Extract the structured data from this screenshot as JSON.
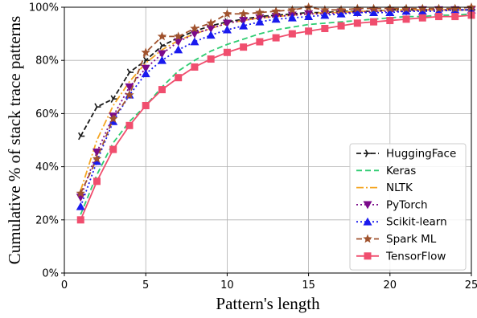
{
  "chart_data": {
    "type": "line",
    "title": "",
    "xlabel": "Pattern's length",
    "ylabel": "Cumulative % of stack trace patterns",
    "xlim": [
      0,
      25
    ],
    "ylim": [
      0,
      100
    ],
    "xticks": [
      0,
      5,
      10,
      15,
      20,
      25
    ],
    "yticks": [
      0,
      20,
      40,
      60,
      80,
      100
    ],
    "ytick_labels": [
      "0%",
      "20%",
      "40%",
      "60%",
      "80%",
      "100%"
    ],
    "grid": true,
    "legend": "lower-right",
    "series": [
      {
        "name": "HuggingFace",
        "color": "#1a1a1a",
        "dash": "6,3",
        "marker": "tri-right",
        "show_markers": true,
        "x": [
          1,
          2,
          3,
          4,
          5,
          6,
          7,
          8,
          9,
          10,
          11,
          12,
          13,
          14,
          15,
          16,
          17,
          18,
          19,
          20,
          21,
          22,
          23,
          24,
          25
        ],
        "y": [
          51.5,
          62.5,
          65.5,
          75.5,
          80,
          85.5,
          88.5,
          91,
          93,
          94.5,
          95.5,
          96.5,
          97,
          97.5,
          98,
          98,
          98.5,
          98.5,
          98.5,
          99,
          99,
          99,
          99,
          99,
          99
        ]
      },
      {
        "name": "Keras",
        "color": "#2ecc71",
        "dash": "7,4",
        "marker": "none",
        "show_markers": false,
        "x": [
          1,
          2,
          3,
          4,
          5,
          6,
          7,
          8,
          9,
          10,
          11,
          12,
          13,
          14,
          15,
          16,
          17,
          18,
          19,
          20,
          21,
          22,
          23,
          24,
          25
        ],
        "y": [
          22,
          37,
          49,
          57,
          63,
          70,
          76,
          80,
          83.5,
          86,
          88,
          90,
          91.5,
          92.5,
          93.5,
          94,
          94.5,
          95,
          95.5,
          96,
          96.5,
          96.5,
          97,
          97,
          97.5
        ]
      },
      {
        "name": "NLTK",
        "color": "#f5a623",
        "dash": "9,3,2,3",
        "marker": "none",
        "show_markers": false,
        "x": [
          1,
          2,
          3,
          4,
          5,
          6,
          7,
          8,
          9,
          10,
          11,
          12,
          13,
          14,
          15,
          16,
          17,
          18,
          19,
          20,
          21,
          22,
          23,
          24,
          25
        ],
        "y": [
          31,
          50,
          63,
          72,
          79,
          84,
          87.5,
          90,
          92,
          94,
          95,
          96,
          96.5,
          97,
          97.5,
          98,
          98,
          98.5,
          98.5,
          99,
          99,
          99,
          99,
          99,
          99
        ]
      },
      {
        "name": "PyTorch",
        "color": "#7b0a8a",
        "dash": "2,3",
        "marker": "tri-down",
        "show_markers": true,
        "x": [
          1,
          2,
          3,
          4,
          5,
          6,
          7,
          8,
          9,
          10,
          11,
          12,
          13,
          14,
          15,
          16,
          17,
          18,
          19,
          20,
          21,
          22,
          23,
          24,
          25
        ],
        "y": [
          28.5,
          45.5,
          59,
          70,
          77,
          82.5,
          87,
          90,
          92,
          94,
          95,
          96,
          96.5,
          97,
          97.5,
          97.5,
          98,
          98,
          98.5,
          98.5,
          98.5,
          99,
          99,
          99,
          99
        ]
      },
      {
        "name": "Scikit-learn",
        "color": "#1a1aee",
        "dash": "2,3",
        "marker": "tri-up",
        "show_markers": true,
        "x": [
          1,
          2,
          3,
          4,
          5,
          6,
          7,
          8,
          9,
          10,
          11,
          12,
          13,
          14,
          15,
          16,
          17,
          18,
          19,
          20,
          21,
          22,
          23,
          24,
          25
        ],
        "y": [
          25,
          42,
          57,
          67,
          75,
          80,
          84,
          87,
          89.5,
          91.5,
          93,
          94.5,
          95.5,
          96,
          96.5,
          97,
          97.5,
          98,
          98,
          98,
          98.5,
          98.5,
          98.5,
          99,
          99
        ]
      },
      {
        "name": "Spark ML",
        "color": "#a0522d",
        "dash": "7,4",
        "marker": "star",
        "show_markers": true,
        "x": [
          1,
          2,
          3,
          4,
          5,
          6,
          7,
          8,
          9,
          10,
          11,
          12,
          13,
          14,
          15,
          16,
          17,
          18,
          19,
          20,
          21,
          22,
          23,
          24,
          25
        ],
        "y": [
          30,
          43,
          58,
          67,
          83,
          89,
          89,
          92,
          94,
          97.5,
          97.5,
          98,
          98.5,
          99,
          100,
          99,
          99,
          99.5,
          99.5,
          99.5,
          99.5,
          99.5,
          99.5,
          99.5,
          100
        ]
      },
      {
        "name": "TensorFlow",
        "color": "#f04e6e",
        "dash": "",
        "marker": "square",
        "show_markers": true,
        "x": [
          1,
          2,
          3,
          4,
          5,
          6,
          7,
          8,
          9,
          10,
          11,
          12,
          13,
          14,
          15,
          16,
          17,
          18,
          19,
          20,
          21,
          22,
          23,
          24,
          25
        ],
        "y": [
          20,
          34.5,
          46.5,
          55.5,
          63,
          69,
          73.5,
          77.5,
          80.5,
          83,
          85,
          87,
          88.5,
          90,
          91,
          92,
          93,
          94,
          94.5,
          95,
          95.5,
          96,
          96.5,
          96.5,
          97
        ]
      }
    ]
  }
}
